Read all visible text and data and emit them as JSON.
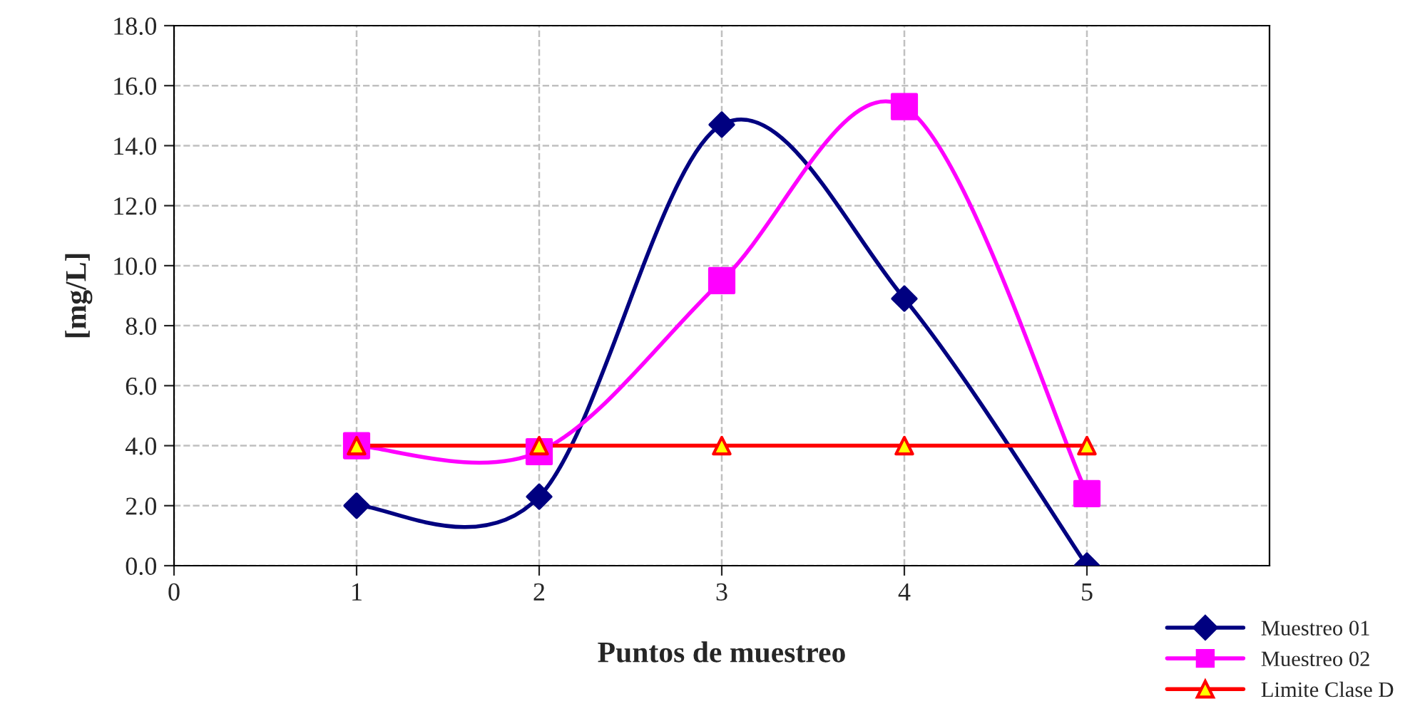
{
  "chart_data": {
    "type": "line",
    "xlabel": "Puntos de muestreo",
    "ylabel": "[mg/L]",
    "x": [
      1,
      2,
      3,
      4,
      5
    ],
    "series": [
      {
        "name": "Muestreo 01",
        "color": "#000080",
        "marker": "diamond",
        "values": [
          2.0,
          2.3,
          14.7,
          8.9,
          0.0
        ]
      },
      {
        "name": "Muestreo 02",
        "color": "#ff00ff",
        "marker": "square",
        "values": [
          4.0,
          3.8,
          9.5,
          15.3,
          2.4
        ]
      },
      {
        "name": "Limite Clase D",
        "color": "#ff0000",
        "marker": "triangle",
        "values": [
          4.0,
          4.0,
          4.0,
          4.0,
          4.0
        ]
      }
    ],
    "xlim": [
      0,
      6
    ],
    "xticks": [
      0,
      1,
      2,
      3,
      4,
      5
    ],
    "ylim": [
      0,
      18
    ],
    "yticks": [
      {
        "value": 0,
        "label": "0.0"
      },
      {
        "value": 2,
        "label": "2.0"
      },
      {
        "value": 4,
        "label": "4.0"
      },
      {
        "value": 6,
        "label": "6.0"
      },
      {
        "value": 8,
        "label": "8.0"
      },
      {
        "value": 10,
        "label": "10.0"
      },
      {
        "value": 12,
        "label": "12.0"
      },
      {
        "value": 14,
        "label": "14.0"
      },
      {
        "value": 16,
        "label": "16.0"
      },
      {
        "value": 18,
        "label": "18.0"
      }
    ],
    "grid": true,
    "legend": "bottom right"
  }
}
